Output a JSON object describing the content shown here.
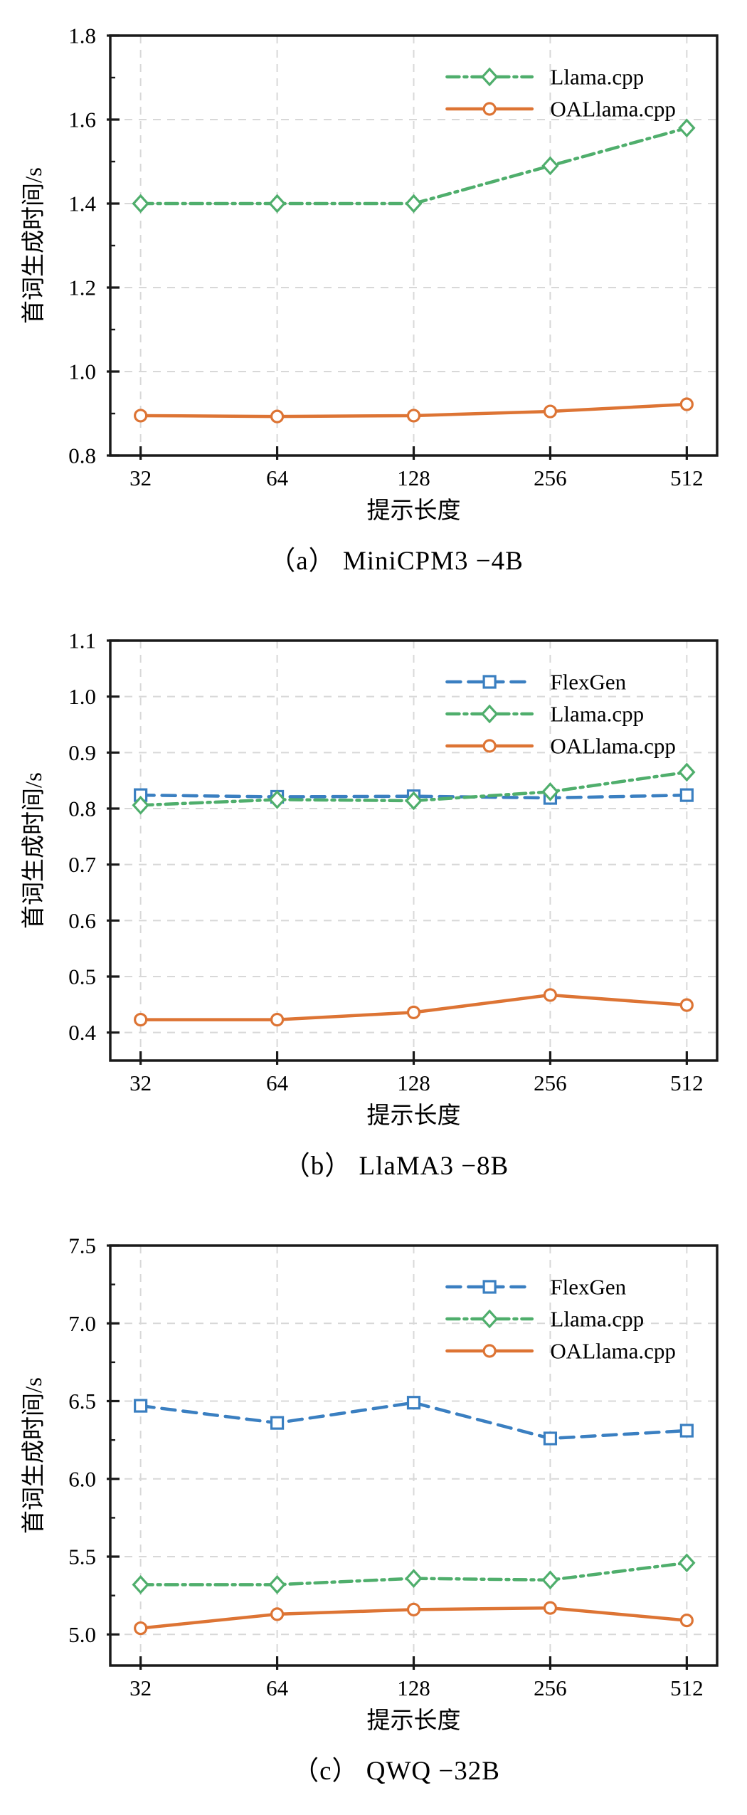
{
  "styles": {
    "background": "#ffffff",
    "axis_color": "#1a1a1a",
    "grid_color": "#d8d8d8",
    "text_color": "#000000",
    "marker_fill": "#ffffff",
    "series_colors": {
      "flexgen_blue": "#3a7fc1",
      "llama_cpp_green": "#4fae6c",
      "oallama_cpp_orange": "#dd7434"
    }
  },
  "chart_data": [
    {
      "type": "line",
      "title": "（a） MiniCPM3 −4B",
      "xlabel": "提示长度",
      "ylabel": "首词生成时间/s",
      "categories": [
        "32",
        "64",
        "128",
        "256",
        "512"
      ],
      "ylim": [
        0.8,
        1.8
      ],
      "yticks": [
        0.8,
        1.0,
        1.2,
        1.4,
        1.6,
        1.8
      ],
      "ytick_labels": [
        "0.8",
        "1.0",
        "1.2",
        "1.4",
        "1.6",
        "1.8"
      ],
      "grid": true,
      "minor_ticks": true,
      "legend_position": "top-right",
      "series": [
        {
          "name": "Llama.cpp",
          "color": "#4fae6c",
          "line_style": "dashdot",
          "marker": "diamond",
          "values": [
            1.4,
            1.4,
            1.4,
            1.49,
            1.58
          ]
        },
        {
          "name": "OALlama.cpp",
          "color": "#dd7434",
          "line_style": "solid",
          "marker": "circle",
          "values": [
            0.895,
            0.893,
            0.895,
            0.905,
            0.922
          ]
        }
      ]
    },
    {
      "type": "line",
      "title": "（b） LlaMA3 −8B",
      "xlabel": "提示长度",
      "ylabel": "首词生成时间/s",
      "categories": [
        "32",
        "64",
        "128",
        "256",
        "512"
      ],
      "ylim": [
        0.35,
        1.1
      ],
      "yticks": [
        0.4,
        0.5,
        0.6,
        0.7,
        0.8,
        0.9,
        1.0,
        1.1
      ],
      "ytick_labels": [
        "0.4",
        "0.5",
        "0.6",
        "0.7",
        "0.8",
        "0.9",
        "1.0",
        "1.1"
      ],
      "grid": true,
      "minor_ticks": false,
      "legend_position": "top-right",
      "series": [
        {
          "name": "FlexGen",
          "color": "#3a7fc1",
          "line_style": "dashed",
          "marker": "square",
          "values": [
            0.824,
            0.821,
            0.822,
            0.819,
            0.824
          ]
        },
        {
          "name": "Llama.cpp",
          "color": "#4fae6c",
          "line_style": "dashdot",
          "marker": "diamond",
          "values": [
            0.806,
            0.816,
            0.814,
            0.83,
            0.865
          ]
        },
        {
          "name": "OALlama.cpp",
          "color": "#dd7434",
          "line_style": "solid",
          "marker": "circle",
          "values": [
            0.423,
            0.423,
            0.436,
            0.467,
            0.449
          ]
        }
      ]
    },
    {
      "type": "line",
      "title": "（c） QWQ −32B",
      "xlabel": "提示长度",
      "ylabel": "首词生成时间/s",
      "categories": [
        "32",
        "64",
        "128",
        "256",
        "512"
      ],
      "ylim": [
        4.8,
        7.5
      ],
      "yticks": [
        5.0,
        5.5,
        6.0,
        6.5,
        7.0,
        7.5
      ],
      "ytick_labels": [
        "5.0",
        "5.5",
        "6.0",
        "6.5",
        "7.0",
        "7.5"
      ],
      "grid": true,
      "minor_ticks": true,
      "legend_position": "top-right",
      "series": [
        {
          "name": "FlexGen",
          "color": "#3a7fc1",
          "line_style": "dashed",
          "marker": "square",
          "values": [
            6.47,
            6.36,
            6.49,
            6.26,
            6.31
          ]
        },
        {
          "name": "Llama.cpp",
          "color": "#4fae6c",
          "line_style": "dashdot",
          "marker": "diamond",
          "values": [
            5.32,
            5.32,
            5.36,
            5.35,
            5.46
          ]
        },
        {
          "name": "OALlama.cpp",
          "color": "#dd7434",
          "line_style": "solid",
          "marker": "circle",
          "values": [
            5.04,
            5.13,
            5.16,
            5.17,
            5.09
          ]
        }
      ]
    }
  ]
}
